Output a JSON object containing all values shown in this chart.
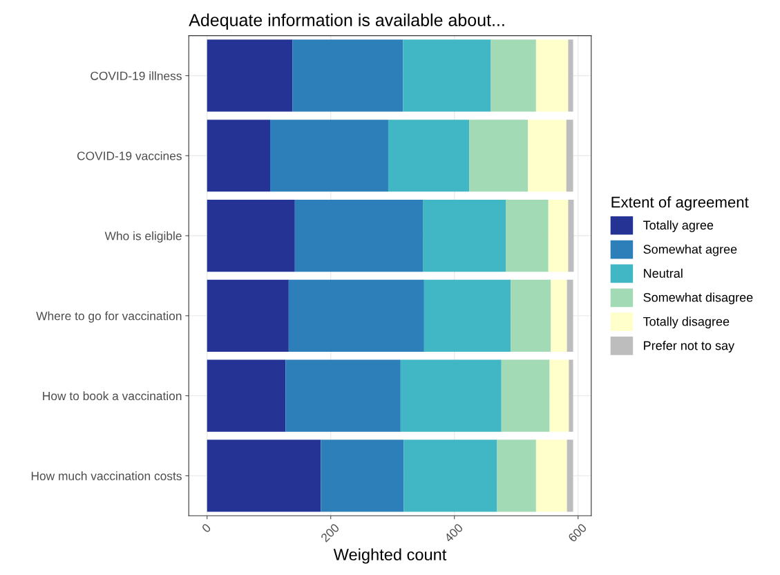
{
  "chart_data": {
    "type": "bar",
    "orientation": "horizontal",
    "stacked": true,
    "title": "Adequate information is available about...",
    "xlabel": "Weighted count",
    "legend_title": "Extent of agreement",
    "legend": "right",
    "grid": true,
    "categories": [
      "COVID-19 illness",
      "COVID-19 vaccines",
      "Who is eligible",
      "Where to go for vaccination",
      "How to book a vaccination",
      "How much vaccination costs"
    ],
    "xlim": [
      -29.6,
      621.3
    ],
    "xticks": [
      0,
      200,
      400,
      600
    ],
    "series": [
      {
        "name": "Totally agree",
        "color": "#253494",
        "values": [
          138,
          102,
          142,
          132,
          127,
          184
        ]
      },
      {
        "name": "Somewhat agree",
        "color": "#2c7fb8",
        "values": [
          179,
          191,
          207,
          219,
          186,
          134
        ]
      },
      {
        "name": "Neutral",
        "color": "#41b6c4",
        "values": [
          142,
          131,
          134,
          140,
          163,
          151
        ]
      },
      {
        "name": "Somewhat disagree",
        "color": "#a1dab4",
        "values": [
          73,
          95,
          69,
          65,
          78,
          63
        ]
      },
      {
        "name": "Totally disagree",
        "color": "#ffffcc",
        "values": [
          52,
          62,
          32,
          26,
          31,
          50
        ]
      },
      {
        "name": "Prefer not to say",
        "color": "#bdbdbd",
        "values": [
          8,
          11,
          9,
          10,
          7,
          10
        ]
      }
    ]
  }
}
